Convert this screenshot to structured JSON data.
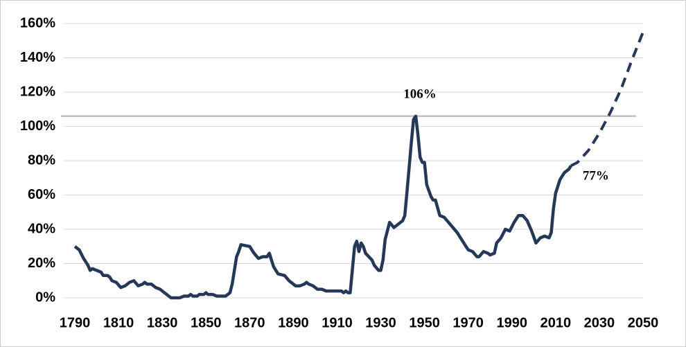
{
  "chart_data": {
    "type": "line",
    "xlim": [
      1790,
      2050
    ],
    "xticks": [
      1790,
      1810,
      1830,
      1850,
      1870,
      1890,
      1910,
      1930,
      1950,
      1970,
      1990,
      2010,
      2030,
      2050
    ],
    "ylim": [
      0,
      160
    ],
    "yticks": [
      {
        "value": 0,
        "label": "0%"
      },
      {
        "value": 20,
        "label": "20%"
      },
      {
        "value": 40,
        "label": "40%"
      },
      {
        "value": 60,
        "label": "60%"
      },
      {
        "value": 80,
        "label": "80%"
      },
      {
        "value": 100,
        "label": "100%"
      },
      {
        "value": 120,
        "label": "120%"
      },
      {
        "value": 140,
        "label": "140%"
      },
      {
        "value": 160,
        "label": "160%"
      }
    ],
    "grid": true,
    "reference_line": {
      "value": 106,
      "color": "#bfbfbf"
    },
    "annotations": [
      {
        "text": "106%",
        "x": 1946,
        "y": 106
      },
      {
        "text": "77%",
        "x": 2017,
        "y": 77
      }
    ],
    "series": [
      {
        "color": "#253858",
        "dashed": false,
        "x": [
          1790,
          1792,
          1794,
          1796,
          1797,
          1798,
          1800,
          1802,
          1803,
          1805,
          1806,
          1807,
          1809,
          1811,
          1813,
          1815,
          1817,
          1819,
          1821,
          1822,
          1823,
          1825,
          1827,
          1829,
          1831,
          1833,
          1834,
          1836,
          1838,
          1840,
          1842,
          1843,
          1844,
          1846,
          1847,
          1849,
          1850,
          1851,
          1853,
          1855,
          1857,
          1859,
          1860,
          1861,
          1862,
          1864,
          1865,
          1866,
          1870,
          1872,
          1874,
          1876,
          1878,
          1879,
          1880,
          1881,
          1883,
          1886,
          1888,
          1891,
          1893,
          1895,
          1896,
          1897,
          1899,
          1901,
          1903,
          1905,
          1908,
          1912,
          1913,
          1914,
          1915,
          1916,
          1918,
          1919,
          1920,
          1921,
          1922,
          1923,
          1926,
          1927,
          1929,
          1930,
          1931,
          1932,
          1934,
          1936,
          1938,
          1939,
          1940,
          1941,
          1942,
          1944,
          1945,
          1946,
          1947,
          1948,
          1949,
          1950,
          1951,
          1953,
          1954,
          1955,
          1957,
          1959,
          1961,
          1963,
          1965,
          1967,
          1969,
          1970,
          1972,
          1974,
          1975,
          1977,
          1979,
          1980,
          1982,
          1983,
          1985,
          1987,
          1989,
          1991,
          1993,
          1995,
          1997,
          1998,
          1999,
          2001,
          2003,
          2005,
          2007,
          2008,
          2009,
          2010,
          2012,
          2014,
          2016,
          2017
        ],
        "values": [
          30,
          28,
          23,
          19,
          16,
          17,
          16,
          15,
          13,
          13,
          12,
          10,
          9,
          6,
          7,
          9,
          10,
          7,
          8,
          9,
          8,
          8,
          6,
          5,
          3,
          1,
          0,
          0,
          0,
          1,
          1,
          2,
          1,
          1,
          2,
          2,
          3,
          2,
          2,
          1,
          1,
          1,
          2,
          3,
          8,
          24,
          27,
          31,
          30,
          26,
          23,
          24,
          24,
          26,
          22,
          18,
          14,
          13,
          10,
          7,
          7,
          8,
          9,
          8,
          7,
          5,
          5,
          4,
          4,
          4,
          3,
          4,
          3,
          3,
          30,
          33,
          27,
          32,
          30,
          26,
          22,
          19,
          16,
          16,
          22,
          34,
          44,
          41,
          43,
          44,
          45,
          48,
          62,
          91,
          104,
          106,
          95,
          82,
          79,
          79,
          66,
          59,
          57,
          57,
          48,
          47,
          44,
          41,
          38,
          34,
          30,
          28,
          27,
          24,
          24,
          27,
          26,
          25,
          26,
          32,
          35,
          40,
          39,
          44,
          48,
          48,
          45,
          42,
          39,
          32,
          35,
          36,
          35,
          38,
          52,
          61,
          69,
          73,
          75,
          77
        ]
      },
      {
        "color": "#253858",
        "dashed": true,
        "x": [
          2017,
          2020,
          2025,
          2030,
          2035,
          2040,
          2045,
          2050
        ],
        "values": [
          77,
          79,
          86,
          96,
          108,
          122,
          139,
          155
        ]
      }
    ]
  }
}
